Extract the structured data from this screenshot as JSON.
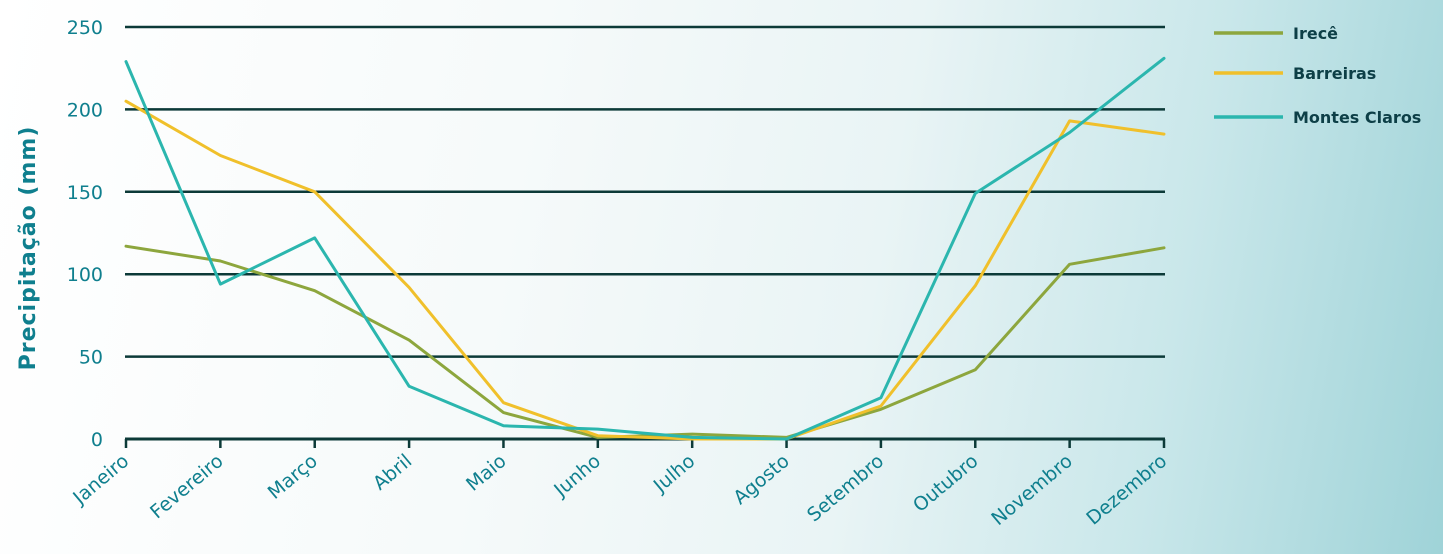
{
  "chart_data": {
    "type": "line",
    "ylabel": "Precipitação (mm)",
    "xlabel": "",
    "ylim": [
      0,
      250
    ],
    "yticks": [
      0,
      50,
      100,
      150,
      200,
      250
    ],
    "categories": [
      "Janeiro",
      "Fevereiro",
      "Março",
      "Abril",
      "Maio",
      "Junho",
      "Julho",
      "Agosto",
      "Setembro",
      "Outubro",
      "Novembro",
      "Dezembro"
    ],
    "grid": true,
    "legend_position": "top-right",
    "series": [
      {
        "name": "Irecê",
        "color": "#8da63d",
        "values": [
          117,
          108,
          90,
          60,
          16,
          1,
          3,
          1,
          18,
          42,
          106,
          116
        ]
      },
      {
        "name": "Barreiras",
        "color": "#f0c02b",
        "values": [
          205,
          172,
          150,
          92,
          22,
          2,
          0,
          0,
          20,
          93,
          193,
          185
        ]
      },
      {
        "name": "Montes Claros",
        "color": "#2bb6ae",
        "values": [
          229,
          94,
          122,
          32,
          8,
          6,
          1,
          0,
          25,
          149,
          186,
          231
        ]
      }
    ]
  }
}
